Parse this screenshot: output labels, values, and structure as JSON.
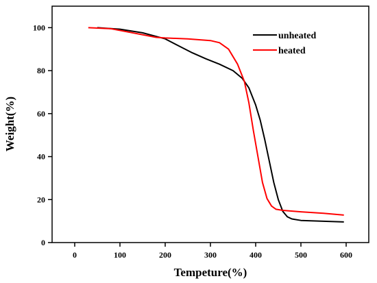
{
  "chart_data": {
    "type": "line",
    "xlabel": "Tempeture(%)",
    "ylabel": "Weight(%)",
    "xlim": [
      -50,
      650
    ],
    "ylim": [
      0,
      110
    ],
    "xticks": [
      0,
      100,
      200,
      300,
      400,
      500,
      600
    ],
    "yticks": [
      0,
      20,
      40,
      60,
      80,
      100
    ],
    "legend_position": "top-right",
    "series": [
      {
        "name": "unheated",
        "color": "#000000",
        "x": [
          50,
          100,
          150,
          200,
          230,
          260,
          290,
          320,
          350,
          370,
          385,
          400,
          410,
          420,
          430,
          440,
          450,
          460,
          470,
          480,
          500,
          550,
          595
        ],
        "y": [
          100,
          99.3,
          97.6,
          94.8,
          91.5,
          88.3,
          85.5,
          83.0,
          80.0,
          76.5,
          72.0,
          64.0,
          57.0,
          48.0,
          38.0,
          28.0,
          20.0,
          14.5,
          12.0,
          11.0,
          10.3,
          9.9,
          9.6
        ]
      },
      {
        "name": "heated",
        "color": "#ff0000",
        "x": [
          30,
          80,
          130,
          180,
          200,
          250,
          300,
          320,
          340,
          360,
          375,
          385,
          395,
          405,
          415,
          425,
          435,
          445,
          460,
          500,
          550,
          595
        ],
        "y": [
          100,
          99.5,
          97.5,
          95.5,
          95.2,
          94.8,
          94.0,
          93.0,
          90.0,
          83.0,
          75.0,
          65.0,
          52.0,
          40.0,
          28.0,
          20.5,
          17.0,
          15.5,
          15.0,
          14.3,
          13.6,
          12.8
        ]
      }
    ]
  }
}
